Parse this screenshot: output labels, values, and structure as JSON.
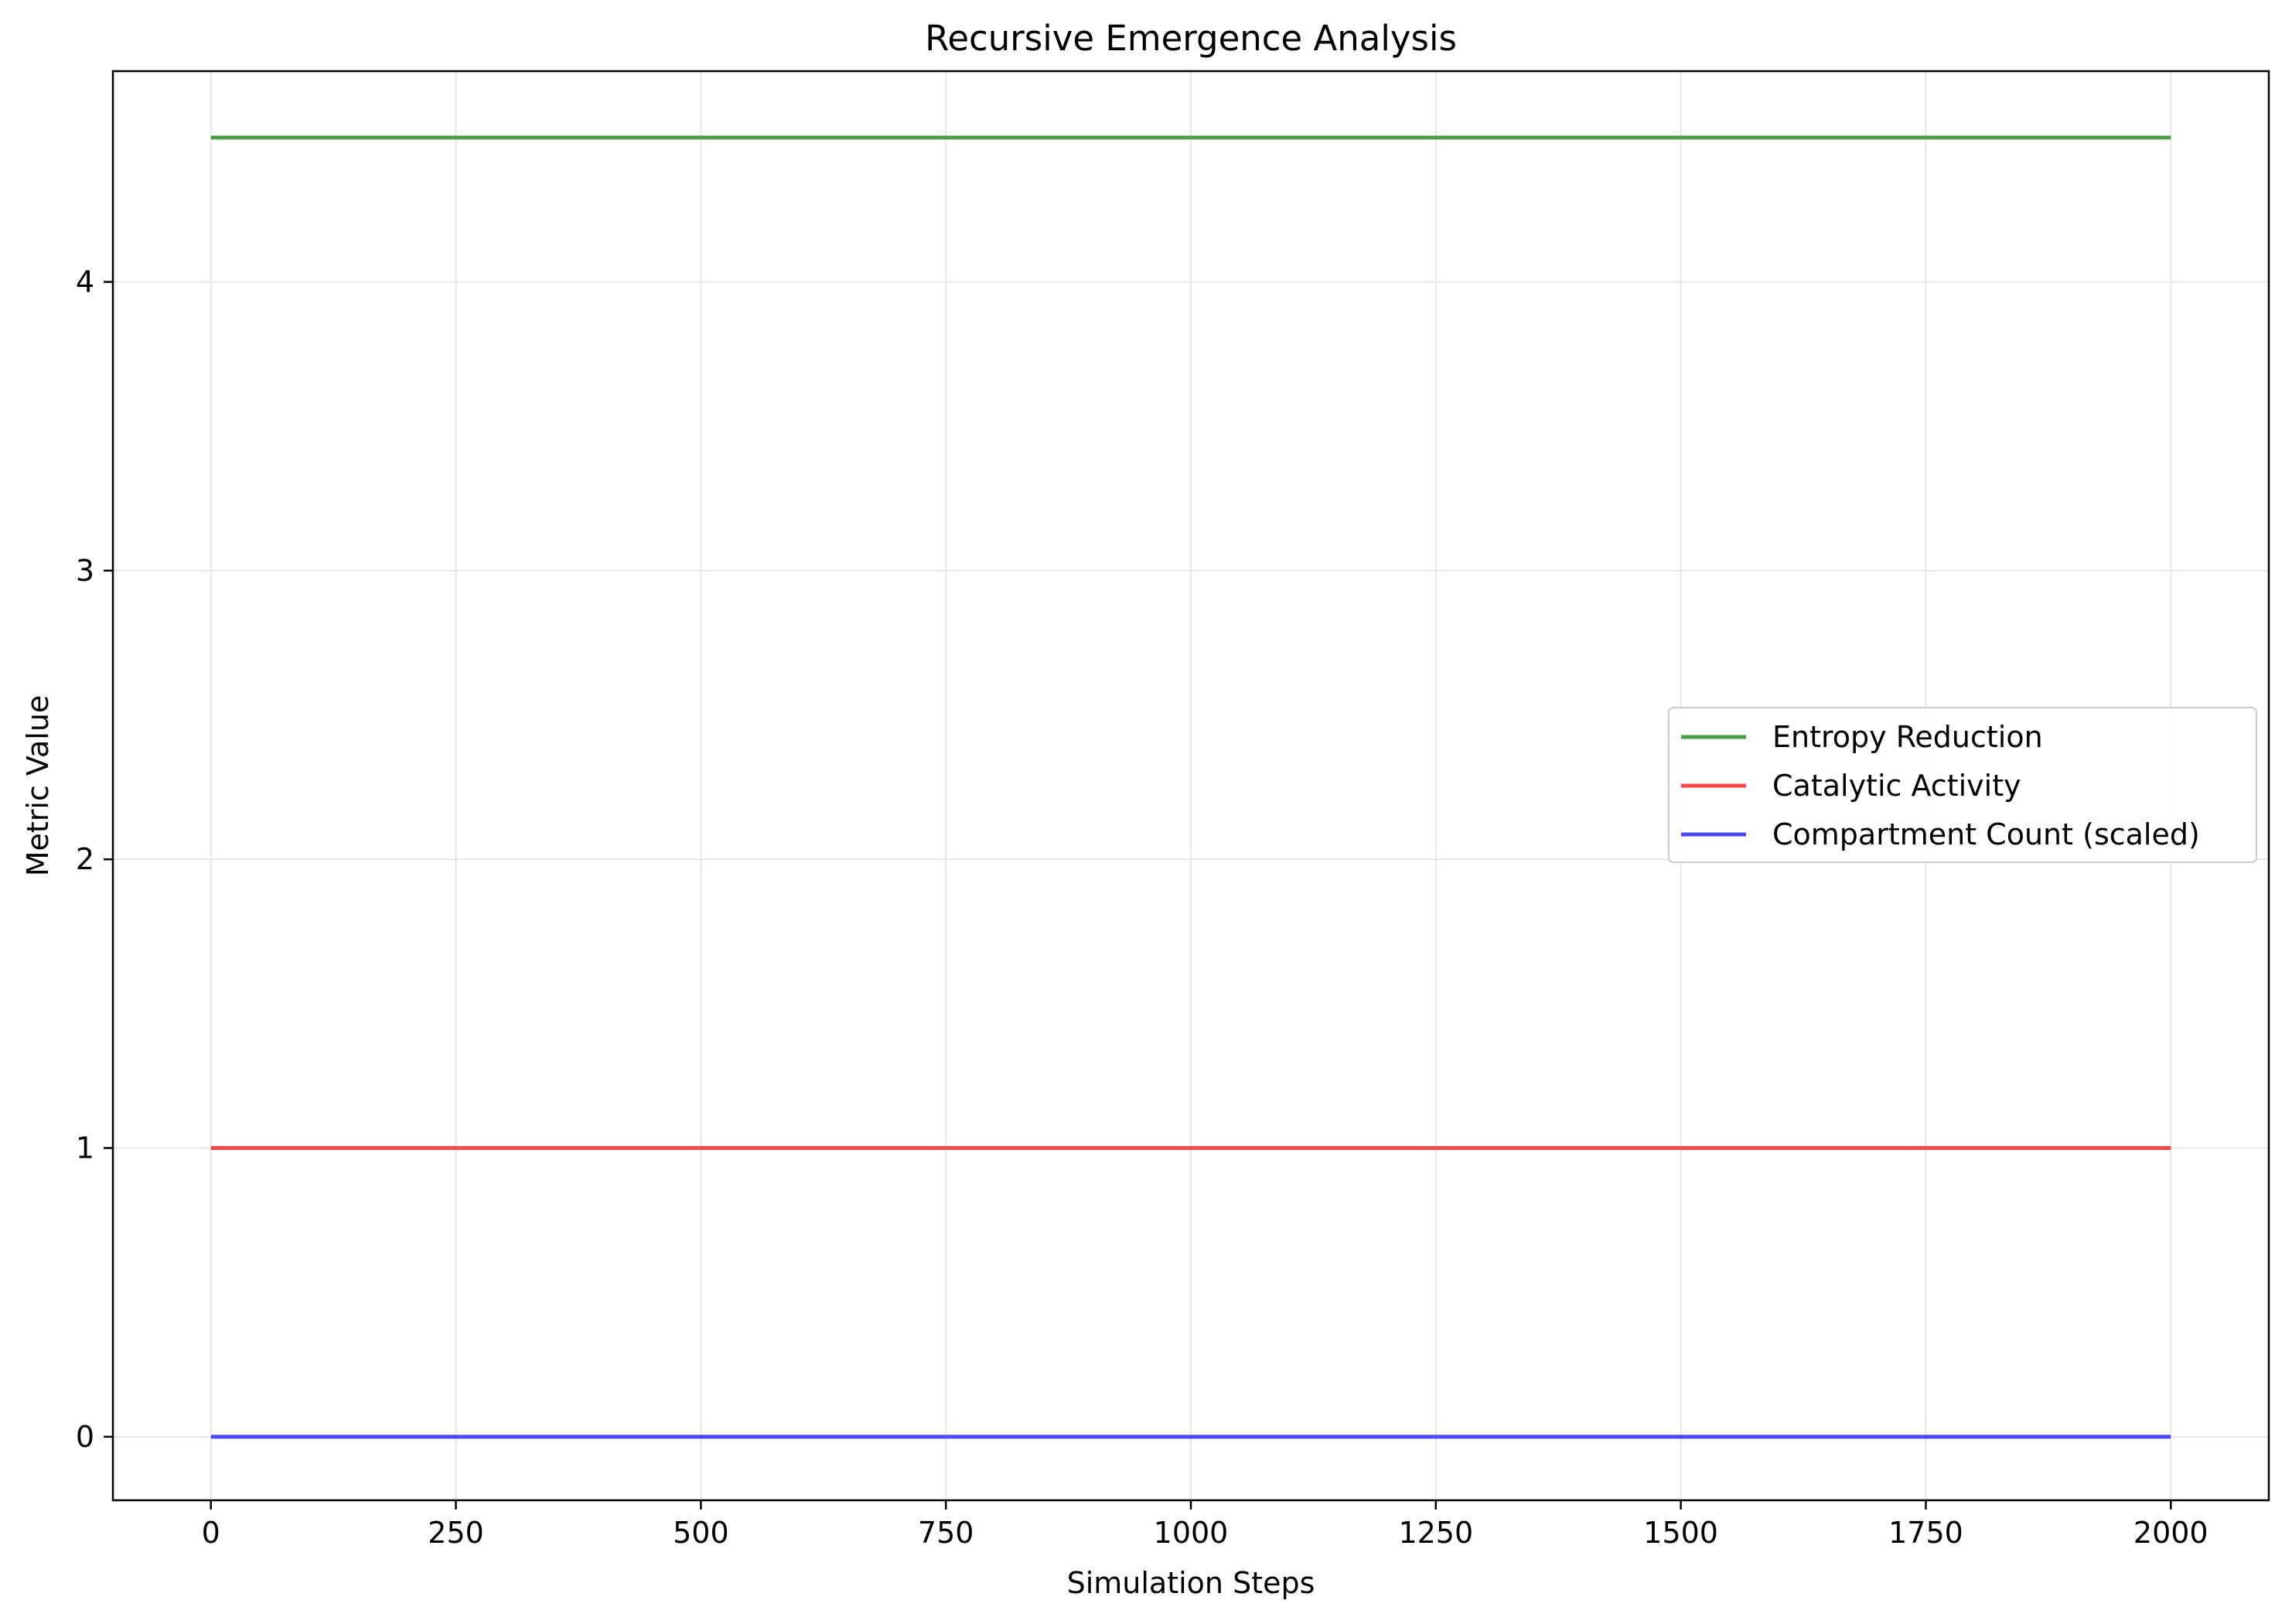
{
  "chart_data": {
    "type": "line",
    "title": "Recursive Emergence Analysis",
    "xlabel": "Simulation Steps",
    "ylabel": "Metric Value",
    "xlim": [
      -100,
      2100
    ],
    "ylim": [
      -0.22,
      4.73
    ],
    "xticks": [
      0,
      250,
      500,
      750,
      1000,
      1250,
      1500,
      1750,
      2000
    ],
    "xtick_labels": [
      "0",
      "250",
      "500",
      "750",
      "1000",
      "1250",
      "1500",
      "1750",
      "2000"
    ],
    "yticks": [
      0,
      1,
      2,
      3,
      4
    ],
    "ytick_labels": [
      "0",
      "1",
      "2",
      "3",
      "4"
    ],
    "grid": true,
    "legend_position": "center-right",
    "series": [
      {
        "name": "Entropy Reduction",
        "color": "#4a9e45",
        "x": [
          0,
          2000
        ],
        "y": [
          4.5,
          4.5
        ]
      },
      {
        "name": "Catalytic Activity",
        "color": "#f5494b",
        "x": [
          0,
          2000
        ],
        "y": [
          1.0,
          1.0
        ]
      },
      {
        "name": "Compartment Count (scaled)",
        "color": "#4949f5",
        "x": [
          0,
          2000
        ],
        "y": [
          0.0,
          0.0
        ]
      }
    ]
  }
}
